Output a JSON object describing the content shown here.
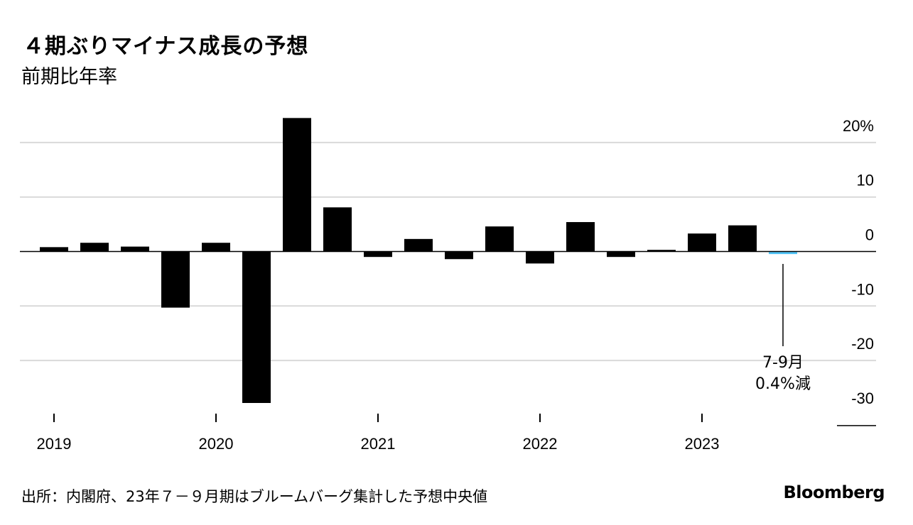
{
  "title": "４期ぶりマイナス成長の予想",
  "subtitle": "前期比年率",
  "source": "出所：内閣府、23年７－９月期はブルームバーグ集計した予想中央値",
  "brand": "Bloomberg",
  "colors": {
    "bar": "#000000",
    "forecast": "#4fc3f7",
    "grid": "#d9d9d9",
    "axis": "#000000"
  },
  "chart_data": {
    "type": "bar",
    "categories": [
      "2019Q1",
      "2019Q2",
      "2019Q3",
      "2019Q4",
      "2020Q1",
      "2020Q2",
      "2020Q3",
      "2020Q4",
      "2021Q1",
      "2021Q2",
      "2021Q3",
      "2021Q4",
      "2022Q1",
      "2022Q2",
      "2022Q3",
      "2022Q4",
      "2023Q1",
      "2023Q2",
      "2023Q3"
    ],
    "values": [
      0.8,
      1.6,
      0.9,
      -10.3,
      1.6,
      -27.8,
      24.5,
      8.1,
      -1.0,
      2.3,
      -1.4,
      4.6,
      -2.2,
      5.4,
      -1.0,
      0.3,
      3.3,
      4.8,
      -0.4
    ],
    "forecast_index": 18,
    "year_labels": [
      "2019",
      "2020",
      "2021",
      "2022",
      "2023"
    ],
    "y_ticks": [
      {
        "value": 20,
        "label": "20%"
      },
      {
        "value": 10,
        "label": "10"
      },
      {
        "value": 0,
        "label": "0"
      },
      {
        "value": -10,
        "label": "-10"
      },
      {
        "value": -20,
        "label": "-20"
      },
      {
        "value": -30,
        "label": "-30"
      }
    ],
    "ylim": [
      -30,
      20
    ],
    "annotation": {
      "line1": "7-9月",
      "line2": "0.4%減"
    },
    "grid": true
  }
}
